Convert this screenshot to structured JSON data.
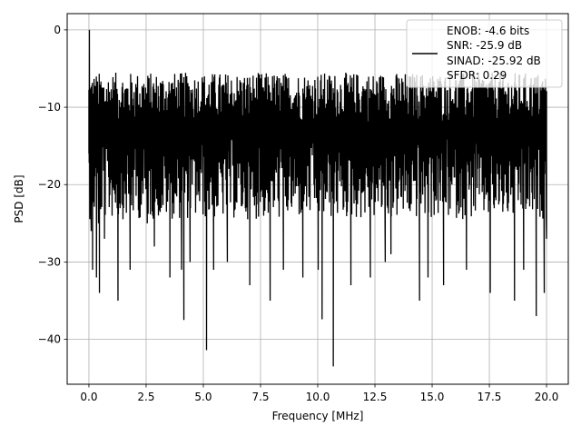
{
  "chart_data": {
    "type": "line",
    "title": "",
    "xlabel": "Frequency [MHz]",
    "ylabel": "PSD [dB]",
    "xlim": [
      -0.95,
      20.95
    ],
    "ylim": [
      -45.8,
      2.1
    ],
    "xticks": [
      0.0,
      2.5,
      5.0,
      7.5,
      10.0,
      12.5,
      15.0,
      17.5,
      20.0
    ],
    "xtick_labels": [
      "0.0",
      "2.5",
      "5.0",
      "7.5",
      "10.0",
      "12.5",
      "15.0",
      "17.5",
      "20.0"
    ],
    "yticks": [
      0,
      -10,
      -20,
      -30,
      -40
    ],
    "ytick_labels": [
      "0",
      "−10",
      "−20",
      "−30",
      "−40"
    ],
    "grid": true,
    "legend_position": "top-right",
    "legend": [
      "ENOB: -4.6 bits",
      "SNR: -25.9 dB",
      "SINAD: -25.92 dB",
      "SFDR: 0.29"
    ],
    "series": [
      {
        "color": "#000000",
        "x": [
          0.0,
          0.02,
          0.05,
          0.1,
          0.16,
          0.2,
          0.33,
          0.42,
          0.46,
          0.68,
          1.27,
          1.8,
          2.55,
          2.86,
          3.54,
          4.05,
          4.15,
          4.42,
          5.14,
          5.45,
          6.05,
          7.03,
          7.92,
          8.5,
          9.35,
          10.02,
          10.19,
          10.68,
          11.45,
          12.3,
          12.95,
          13.2,
          14.45,
          14.82,
          15.5,
          16.5,
          17.54,
          18.6,
          19.0,
          19.55,
          19.9,
          20.0
        ],
        "y": [
          -16,
          0.0,
          -12,
          -26,
          -31,
          -22,
          -32,
          -25,
          -34,
          -27,
          -35,
          -31,
          -25,
          -28,
          -32,
          -31,
          -37.5,
          -30,
          -41.4,
          -31,
          -30,
          -33,
          -35,
          -31,
          -32,
          -31,
          -37.4,
          -43.5,
          -33,
          -32,
          -30,
          -29,
          -35,
          -32,
          -33,
          -31,
          -34,
          -35,
          -31,
          -37,
          -34,
          -27
        ]
      }
    ]
  }
}
